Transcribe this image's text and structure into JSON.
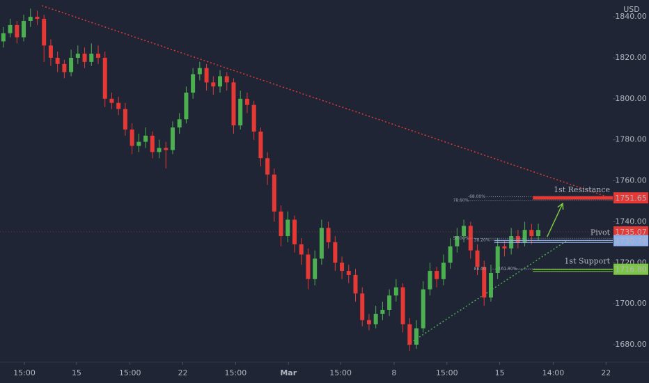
{
  "chart_data": {
    "type": "candlestick",
    "currency": "USD",
    "up_color": "#4caf50",
    "down_color": "#e53935",
    "xlim": [
      -0.5,
      90
    ],
    "ylim": [
      1671.5,
      1848.2
    ],
    "yticks": [
      {
        "value": 1680,
        "label": "1680.00"
      },
      {
        "value": 1700,
        "label": "1700.00"
      },
      {
        "value": 1720,
        "label": "1720.00"
      },
      {
        "value": 1740,
        "label": "1740.00"
      },
      {
        "value": 1760,
        "label": "1760.00"
      },
      {
        "value": 1780,
        "label": "1780.00"
      },
      {
        "value": 1800,
        "label": "1800.00"
      },
      {
        "value": 1820,
        "label": "1820.00"
      },
      {
        "value": 1840,
        "label": "1840.00"
      }
    ],
    "xticks": [
      {
        "value": 3.1,
        "label": "15:00"
      },
      {
        "value": 10.8,
        "label": "15"
      },
      {
        "value": 18.7,
        "label": "15:00"
      },
      {
        "value": 26.5,
        "label": "22"
      },
      {
        "value": 34.3,
        "label": "15:00"
      },
      {
        "value": 42.1,
        "label": "Mar"
      },
      {
        "value": 49.8,
        "label": "15:00"
      },
      {
        "value": 57.7,
        "label": "8"
      },
      {
        "value": 65.5,
        "label": "15:00"
      },
      {
        "value": 73.3,
        "label": "15"
      },
      {
        "value": 81.2,
        "label": "14:00"
      },
      {
        "value": 89,
        "label": "22"
      }
    ],
    "ohlc": [
      [
        1828,
        1835,
        1825,
        1832
      ],
      [
        1832,
        1839,
        1830,
        1836
      ],
      [
        1836,
        1838,
        1827,
        1830
      ],
      [
        1830,
        1841,
        1828,
        1838
      ],
      [
        1838,
        1844,
        1835,
        1840
      ],
      [
        1840,
        1843,
        1836,
        1839
      ],
      [
        1839,
        1841,
        1818,
        1826
      ],
      [
        1826,
        1829,
        1816,
        1820
      ],
      [
        1820,
        1823,
        1813,
        1817
      ],
      [
        1817,
        1819,
        1810,
        1813
      ],
      [
        1813,
        1824,
        1811,
        1820
      ],
      [
        1820,
        1826,
        1817,
        1822
      ],
      [
        1822,
        1825,
        1815,
        1818
      ],
      [
        1818,
        1827,
        1816,
        1822
      ],
      [
        1822,
        1826,
        1817,
        1820
      ],
      [
        1820,
        1823,
        1796,
        1800
      ],
      [
        1800,
        1803,
        1795,
        1798
      ],
      [
        1798,
        1801,
        1792,
        1795
      ],
      [
        1795,
        1798,
        1782,
        1785
      ],
      [
        1785,
        1788,
        1773,
        1777
      ],
      [
        1777,
        1783,
        1774,
        1779
      ],
      [
        1779,
        1786,
        1776,
        1782
      ],
      [
        1782,
        1784,
        1771,
        1774
      ],
      [
        1774,
        1780,
        1771,
        1776
      ],
      [
        1776,
        1779,
        1766,
        1775
      ],
      [
        1775,
        1789,
        1773,
        1786
      ],
      [
        1786,
        1793,
        1783,
        1790
      ],
      [
        1790,
        1806,
        1788,
        1803
      ],
      [
        1803,
        1815,
        1800,
        1812
      ],
      [
        1812,
        1818,
        1809,
        1815
      ],
      [
        1815,
        1817,
        1804,
        1808
      ],
      [
        1808,
        1811,
        1802,
        1806
      ],
      [
        1806,
        1814,
        1803,
        1811
      ],
      [
        1811,
        1813,
        1804,
        1808
      ],
      [
        1808,
        1810,
        1783,
        1787
      ],
      [
        1787,
        1804,
        1785,
        1800
      ],
      [
        1800,
        1803,
        1793,
        1797
      ],
      [
        1797,
        1799,
        1780,
        1784
      ],
      [
        1784,
        1786,
        1767,
        1771
      ],
      [
        1771,
        1774,
        1758,
        1763
      ],
      [
        1763,
        1766,
        1740,
        1745
      ],
      [
        1745,
        1748,
        1728,
        1733
      ],
      [
        1733,
        1745,
        1730,
        1741
      ],
      [
        1741,
        1743,
        1725,
        1729
      ],
      [
        1729,
        1732,
        1719,
        1724
      ],
      [
        1724,
        1727,
        1707,
        1712
      ],
      [
        1712,
        1726,
        1709,
        1722
      ],
      [
        1722,
        1741,
        1719,
        1737
      ],
      [
        1737,
        1740,
        1727,
        1730
      ],
      [
        1730,
        1733,
        1716,
        1720
      ],
      [
        1720,
        1723,
        1712,
        1716
      ],
      [
        1716,
        1719,
        1710,
        1714
      ],
      [
        1714,
        1717,
        1701,
        1705
      ],
      [
        1705,
        1708,
        1689,
        1692
      ],
      [
        1692,
        1695,
        1687,
        1690
      ],
      [
        1690,
        1699,
        1688,
        1695
      ],
      [
        1695,
        1701,
        1692,
        1697
      ],
      [
        1697,
        1707,
        1694,
        1704
      ],
      [
        1704,
        1712,
        1701,
        1708
      ],
      [
        1708,
        1710,
        1686,
        1690
      ],
      [
        1690,
        1693,
        1677,
        1680
      ],
      [
        1680,
        1692,
        1678,
        1688
      ],
      [
        1688,
        1711,
        1686,
        1707
      ],
      [
        1707,
        1720,
        1704,
        1716
      ],
      [
        1716,
        1718,
        1708,
        1712
      ],
      [
        1712,
        1724,
        1709,
        1720
      ],
      [
        1720,
        1732,
        1717,
        1728
      ],
      [
        1728,
        1737,
        1725,
        1733
      ],
      [
        1733,
        1741,
        1730,
        1738
      ],
      [
        1738,
        1740,
        1722,
        1726
      ],
      [
        1726,
        1729,
        1714,
        1718
      ],
      [
        1718,
        1721,
        1699,
        1703
      ],
      [
        1703,
        1719,
        1701,
        1715
      ],
      [
        1715,
        1732,
        1712,
        1728
      ],
      [
        1728,
        1731,
        1723,
        1727
      ],
      [
        1727,
        1737,
        1724,
        1733
      ],
      [
        1733,
        1736,
        1727,
        1730
      ],
      [
        1730,
        1740,
        1728,
        1736
      ],
      [
        1736,
        1739,
        1729,
        1733
      ],
      [
        1733,
        1739,
        1731,
        1736
      ]
    ],
    "current_price": {
      "value": 1735.07,
      "label": "1735.07",
      "color": "#e53935"
    },
    "levels": [
      {
        "name": "1st Resistance",
        "value": 1751.65,
        "label": "1751.65",
        "start": 78.2,
        "color": "#e53935"
      },
      {
        "name": "Pivot",
        "value": 1730.79,
        "label": "1730.79",
        "start": 72.5,
        "color": "#8fb0e8"
      },
      {
        "name": "1st Support",
        "value": 1716.8,
        "label": "1716.80",
        "start": 78.2,
        "color": "#7cc644"
      }
    ],
    "fib_levels": [
      {
        "label": "78.60%",
        "x": 66.4,
        "value": 1750.4
      },
      {
        "label": "-68.00%",
        "x": 68.6,
        "value": 1752.2
      },
      {
        "label": "50.00%",
        "x": 66.4,
        "value": 1731.9
      },
      {
        "label": "38.20%",
        "x": 69.5,
        "value": 1731.0
      },
      {
        "label": "88.00",
        "x": 69.5,
        "value": 1716.9
      },
      {
        "label": "161.80%",
        "x": 73.1,
        "value": 1717.0
      }
    ],
    "trend_lines": [
      {
        "points": [
          5.7,
          1845.4,
          90,
          1751.3
        ],
        "color": "#e53935"
      },
      {
        "points": [
          59.7,
          1680,
          83.3,
          1731.0
        ],
        "color": "#4caf50"
      }
    ],
    "arrow": {
      "points": [
        80.3,
        1732.6,
        82.6,
        1748.9
      ],
      "color": "#7cc644"
    }
  }
}
